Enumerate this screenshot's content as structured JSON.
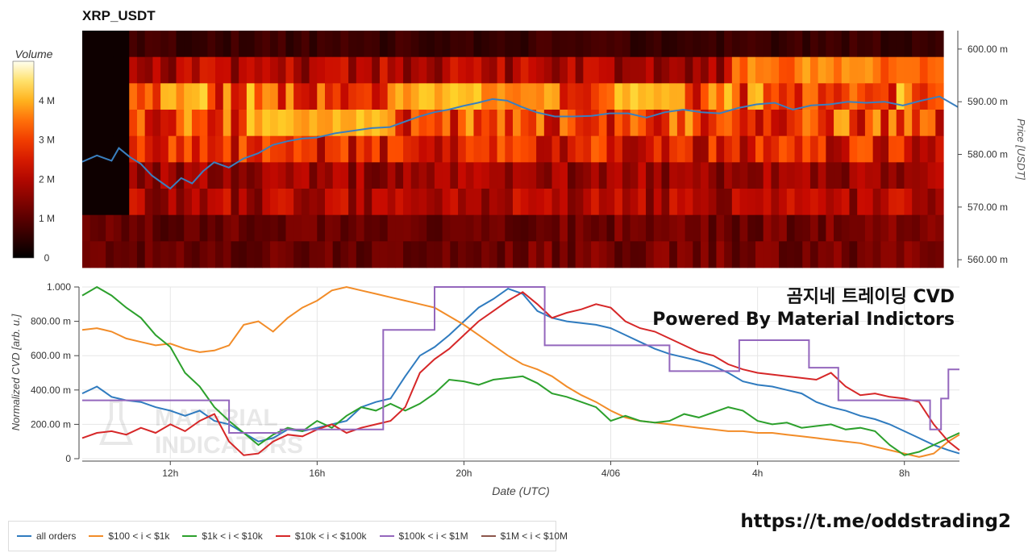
{
  "title": "XRP_USDT",
  "overlay": {
    "line1": "곰지네 트레이딩 CVD",
    "line2": "Powered By Material Indictors"
  },
  "url": "https://t.me/oddstrading2",
  "watermark": {
    "line1": "MATERIAL",
    "line2": "INDICATORS"
  },
  "colorbar": {
    "label": "Volume",
    "ticks": [
      "0",
      "1 M",
      "2 M",
      "3 M",
      "4 M"
    ],
    "tick_values": [
      0,
      1,
      2,
      3,
      4
    ],
    "max": 5
  },
  "chart_data": [
    {
      "type": "heatmap",
      "ylabel": "Price [USDT]",
      "y_ticks": [
        "560.00 m",
        "570.00 m",
        "580.00 m",
        "590.00 m",
        "600.00 m"
      ],
      "y_tick_values": [
        0.56,
        0.57,
        0.58,
        0.59,
        0.6
      ],
      "ylim": [
        0.5585,
        0.6035
      ],
      "price_bands": [
        0.6,
        0.595,
        0.59,
        0.585,
        0.58,
        0.575,
        0.57,
        0.565,
        0.56
      ],
      "band_intensity_profile": [
        0.15,
        0.45,
        0.75,
        0.7,
        0.6,
        0.4,
        0.45,
        0.3,
        0.3
      ],
      "xlim": [
        9.6,
        33.5
      ],
      "series": [
        {
          "name": "Price",
          "color": "#3a7fbf",
          "x": [
            9.6,
            10.0,
            10.4,
            10.6,
            10.9,
            11.2,
            11.5,
            11.8,
            12.0,
            12.3,
            12.6,
            12.9,
            13.2,
            13.6,
            14.0,
            14.4,
            14.8,
            15.2,
            15.6,
            16.0,
            16.5,
            17.0,
            17.5,
            18.0,
            18.4,
            18.8,
            19.2,
            19.6,
            20.0,
            20.4,
            20.8,
            21.2,
            21.6,
            22.0,
            22.5,
            23.0,
            23.5,
            24.0,
            24.5,
            25.0,
            25.5,
            26.0,
            26.5,
            27.0,
            27.5,
            28.0,
            28.5,
            29.0,
            29.5,
            30.0,
            30.5,
            31.0,
            31.5,
            32.0,
            32.5,
            33.0,
            33.2,
            33.5
          ],
          "y": [
            0.5786,
            0.5798,
            0.5788,
            0.5812,
            0.5795,
            0.5782,
            0.576,
            0.5745,
            0.5735,
            0.5755,
            0.5745,
            0.5768,
            0.5785,
            0.5775,
            0.5792,
            0.5802,
            0.5818,
            0.5825,
            0.583,
            0.5832,
            0.584,
            0.5845,
            0.585,
            0.5852,
            0.5862,
            0.5872,
            0.588,
            0.5885,
            0.5892,
            0.5898,
            0.5905,
            0.5902,
            0.589,
            0.588,
            0.5872,
            0.5872,
            0.5873,
            0.5878,
            0.5878,
            0.587,
            0.588,
            0.5885,
            0.588,
            0.5878,
            0.5888,
            0.5895,
            0.5898,
            0.5885,
            0.5893,
            0.5895,
            0.59,
            0.5898,
            0.59,
            0.5893,
            0.5902,
            0.591,
            0.5902,
            0.589
          ]
        }
      ]
    },
    {
      "type": "line",
      "xlabel": "Date (UTC)",
      "ylabel": "Normalized CVD [arb. u.]",
      "ylim": [
        0,
        1
      ],
      "xlim": [
        9.6,
        33.5
      ],
      "y_ticks": [
        "0",
        "200.00 m",
        "400.00 m",
        "600.00 m",
        "800.00 m",
        "1.000"
      ],
      "y_tick_values": [
        0,
        0.2,
        0.4,
        0.6,
        0.8,
        1.0
      ],
      "x_ticks": [
        "12h",
        "16h",
        "20h",
        "4/06",
        "4h",
        "8h"
      ],
      "x_tick_values": [
        12,
        16,
        20,
        24,
        28,
        32
      ],
      "series": [
        {
          "name": "all orders",
          "color": "#2f7bbf",
          "x": [
            9.6,
            10.0,
            10.4,
            10.8,
            11.2,
            11.6,
            12.0,
            12.4,
            12.8,
            13.2,
            13.6,
            14.0,
            14.4,
            14.8,
            15.2,
            15.6,
            16.0,
            16.4,
            16.8,
            17.2,
            17.6,
            18.0,
            18.4,
            18.8,
            19.2,
            19.6,
            20.0,
            20.4,
            20.8,
            21.2,
            21.6,
            22.0,
            22.4,
            22.8,
            23.2,
            23.6,
            24.0,
            24.4,
            24.8,
            25.2,
            25.6,
            26.0,
            26.4,
            26.8,
            27.2,
            27.6,
            28.0,
            28.4,
            28.8,
            29.2,
            29.6,
            30.0,
            30.4,
            30.8,
            31.2,
            31.6,
            32.0,
            32.4,
            32.8,
            33.2,
            33.5
          ],
          "y": [
            0.38,
            0.42,
            0.36,
            0.34,
            0.33,
            0.3,
            0.28,
            0.25,
            0.28,
            0.22,
            0.2,
            0.15,
            0.1,
            0.12,
            0.17,
            0.16,
            0.18,
            0.2,
            0.22,
            0.3,
            0.33,
            0.35,
            0.48,
            0.6,
            0.65,
            0.72,
            0.8,
            0.88,
            0.93,
            0.99,
            0.96,
            0.86,
            0.82,
            0.8,
            0.79,
            0.78,
            0.76,
            0.72,
            0.68,
            0.64,
            0.61,
            0.59,
            0.57,
            0.54,
            0.5,
            0.45,
            0.43,
            0.42,
            0.4,
            0.38,
            0.33,
            0.3,
            0.28,
            0.25,
            0.23,
            0.2,
            0.16,
            0.12,
            0.08,
            0.05,
            0.03
          ]
        },
        {
          "name": "$100 < i < $1k",
          "color": "#f28c28",
          "x": [
            9.6,
            10.0,
            10.4,
            10.8,
            11.2,
            11.6,
            12.0,
            12.4,
            12.8,
            13.2,
            13.6,
            14.0,
            14.4,
            14.8,
            15.2,
            15.6,
            16.0,
            16.4,
            16.8,
            17.2,
            17.6,
            18.0,
            18.4,
            18.8,
            19.2,
            19.6,
            20.0,
            20.4,
            20.8,
            21.2,
            21.6,
            22.0,
            22.4,
            22.8,
            23.2,
            23.6,
            24.0,
            24.4,
            24.8,
            25.2,
            25.6,
            26.0,
            26.4,
            26.8,
            27.2,
            27.6,
            28.0,
            28.4,
            28.8,
            29.2,
            29.6,
            30.0,
            30.4,
            30.8,
            31.2,
            31.6,
            32.0,
            32.4,
            32.8,
            33.2,
            33.5
          ],
          "y": [
            0.75,
            0.76,
            0.74,
            0.7,
            0.68,
            0.66,
            0.67,
            0.64,
            0.62,
            0.63,
            0.66,
            0.78,
            0.8,
            0.74,
            0.82,
            0.88,
            0.92,
            0.98,
            1.0,
            0.98,
            0.96,
            0.94,
            0.92,
            0.9,
            0.88,
            0.83,
            0.78,
            0.72,
            0.66,
            0.6,
            0.55,
            0.52,
            0.48,
            0.42,
            0.37,
            0.33,
            0.28,
            0.24,
            0.22,
            0.21,
            0.2,
            0.19,
            0.18,
            0.17,
            0.16,
            0.16,
            0.15,
            0.15,
            0.14,
            0.13,
            0.12,
            0.11,
            0.1,
            0.09,
            0.07,
            0.05,
            0.03,
            0.01,
            0.03,
            0.1,
            0.14
          ]
        },
        {
          "name": "$1k < i < $10k",
          "color": "#2ca02c",
          "x": [
            9.6,
            10.0,
            10.4,
            10.8,
            11.2,
            11.6,
            12.0,
            12.4,
            12.8,
            13.2,
            13.6,
            14.0,
            14.4,
            14.8,
            15.2,
            15.6,
            16.0,
            16.4,
            16.8,
            17.2,
            17.6,
            18.0,
            18.4,
            18.8,
            19.2,
            19.6,
            20.0,
            20.4,
            20.8,
            21.2,
            21.6,
            22.0,
            22.4,
            22.8,
            23.2,
            23.6,
            24.0,
            24.4,
            24.8,
            25.2,
            25.6,
            26.0,
            26.4,
            26.8,
            27.2,
            27.6,
            28.0,
            28.4,
            28.8,
            29.2,
            29.6,
            30.0,
            30.4,
            30.8,
            31.2,
            31.6,
            32.0,
            32.4,
            32.8,
            33.2,
            33.5
          ],
          "y": [
            0.95,
            1.0,
            0.95,
            0.88,
            0.82,
            0.72,
            0.65,
            0.5,
            0.42,
            0.3,
            0.22,
            0.15,
            0.08,
            0.14,
            0.18,
            0.16,
            0.22,
            0.18,
            0.25,
            0.3,
            0.28,
            0.32,
            0.28,
            0.32,
            0.38,
            0.46,
            0.45,
            0.43,
            0.46,
            0.47,
            0.48,
            0.44,
            0.38,
            0.36,
            0.33,
            0.3,
            0.22,
            0.25,
            0.22,
            0.21,
            0.22,
            0.26,
            0.24,
            0.27,
            0.3,
            0.28,
            0.22,
            0.2,
            0.21,
            0.18,
            0.19,
            0.2,
            0.17,
            0.18,
            0.16,
            0.08,
            0.02,
            0.04,
            0.08,
            0.12,
            0.15
          ]
        },
        {
          "name": "$10k < i < $100k",
          "color": "#d62728",
          "x": [
            9.6,
            10.0,
            10.4,
            10.8,
            11.2,
            11.6,
            12.0,
            12.4,
            12.8,
            13.2,
            13.6,
            14.0,
            14.4,
            14.8,
            15.2,
            15.6,
            16.0,
            16.4,
            16.8,
            17.2,
            17.6,
            18.0,
            18.4,
            18.8,
            19.2,
            19.6,
            20.0,
            20.4,
            20.8,
            21.2,
            21.6,
            22.0,
            22.4,
            22.8,
            23.2,
            23.6,
            24.0,
            24.4,
            24.8,
            25.2,
            25.6,
            26.0,
            26.4,
            26.8,
            27.2,
            27.6,
            28.0,
            28.4,
            28.8,
            29.2,
            29.6,
            30.0,
            30.4,
            30.8,
            31.2,
            31.6,
            32.0,
            32.4,
            32.8,
            33.2,
            33.5
          ],
          "y": [
            0.12,
            0.15,
            0.16,
            0.14,
            0.18,
            0.15,
            0.2,
            0.16,
            0.22,
            0.26,
            0.1,
            0.02,
            0.03,
            0.1,
            0.14,
            0.13,
            0.17,
            0.2,
            0.15,
            0.18,
            0.2,
            0.22,
            0.3,
            0.5,
            0.58,
            0.64,
            0.72,
            0.8,
            0.86,
            0.92,
            0.97,
            0.9,
            0.82,
            0.85,
            0.87,
            0.9,
            0.88,
            0.8,
            0.76,
            0.74,
            0.7,
            0.66,
            0.62,
            0.6,
            0.55,
            0.52,
            0.5,
            0.49,
            0.48,
            0.47,
            0.46,
            0.5,
            0.42,
            0.37,
            0.38,
            0.36,
            0.35,
            0.33,
            0.2,
            0.1,
            0.05
          ]
        },
        {
          "name": "$100k < i < $1M",
          "color": "#9467bd",
          "x": [
            9.6,
            13.6,
            13.6,
            15.0,
            15.0,
            17.8,
            17.8,
            19.2,
            19.2,
            21.6,
            21.6,
            22.0,
            22.0,
            22.2,
            22.2,
            25.6,
            25.6,
            27.5,
            27.5,
            29.4,
            29.4,
            30.2,
            30.2,
            32.7,
            32.7,
            33.0,
            33.0,
            33.2,
            33.2,
            33.5
          ],
          "y": [
            0.34,
            0.34,
            0.15,
            0.15,
            0.17,
            0.17,
            0.75,
            0.75,
            1.0,
            1.0,
            1.0,
            1.0,
            1.0,
            1.0,
            0.66,
            0.66,
            0.51,
            0.51,
            0.69,
            0.69,
            0.53,
            0.53,
            0.34,
            0.34,
            0.17,
            0.17,
            0.35,
            0.35,
            0.52,
            0.52
          ]
        },
        {
          "name": "$1M < i < $10M",
          "color": "#8c564b",
          "x": [],
          "y": []
        }
      ]
    }
  ]
}
